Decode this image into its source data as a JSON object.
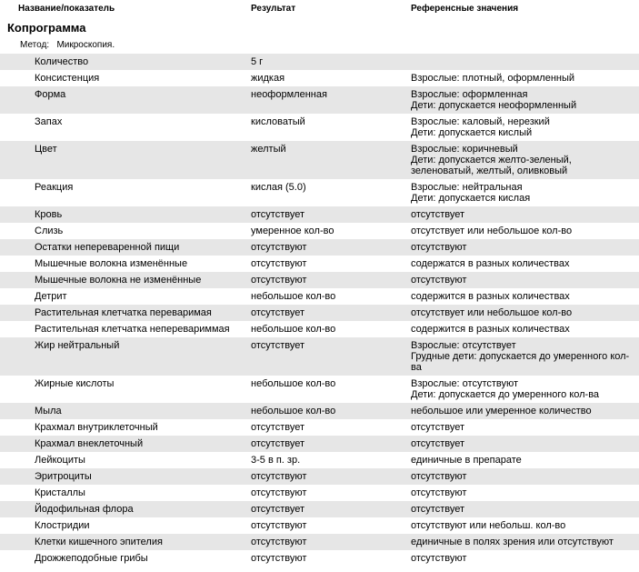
{
  "headers": {
    "name": "Название/показатель",
    "result": "Результат",
    "reference": "Референсные значения"
  },
  "title": "Копрограмма",
  "method_label": "Метод:",
  "method_value": "Микроскопия.",
  "rows": [
    {
      "name": "Количество",
      "result": "5 г",
      "reference": [],
      "alt": true
    },
    {
      "name": "Консистенция",
      "result": "жидкая",
      "reference": [
        "Взрослые: плотный, оформленный"
      ],
      "alt": false
    },
    {
      "name": "Форма",
      "result": "неоформленная",
      "reference": [
        "Взрослые: оформленная",
        " Дети: допускается неоформленный"
      ],
      "alt": true
    },
    {
      "name": "Запах",
      "result": "кисловатый",
      "reference": [
        "Взрослые: каловый, нерезкий",
        "Дети: допускается кислый"
      ],
      "alt": false
    },
    {
      "name": "Цвет",
      "result": "желтый",
      "reference": [
        "Взрослые: коричневый",
        "Дети: допускается желто-зеленый, зеленоватый, желтый, оливковый"
      ],
      "alt": true
    },
    {
      "name": "Реакция",
      "result": "кислая (5.0)",
      "reference": [
        "Взрослые: нейтральная",
        "Дети: допускается кислая"
      ],
      "alt": false
    },
    {
      "name": "Кровь",
      "result": "отсутствует",
      "reference": [
        "отсутствует"
      ],
      "alt": true
    },
    {
      "name": "Слизь",
      "result": "умеренное кол-во",
      "reference": [
        "отсутствует или небольшое кол-во"
      ],
      "alt": false
    },
    {
      "name": "Остатки непереваренной пищи",
      "result": "отсутствуют",
      "reference": [
        "отсутствуют"
      ],
      "alt": true
    },
    {
      "name": "Мышечные волокна изменённые",
      "result": "отсутствуют",
      "reference": [
        "содержатся в разных количествах"
      ],
      "alt": false
    },
    {
      "name": "Мышечные волокна не изменённые",
      "result": "отсутствуют",
      "reference": [
        "отсутствуют"
      ],
      "alt": true
    },
    {
      "name": "Детрит",
      "result": "небольшое кол-во",
      "reference": [
        "содержится в разных количествах"
      ],
      "alt": false
    },
    {
      "name": "Растительная клетчатка переваримая",
      "result": "отсутствует",
      "reference": [
        "отсутствует или небольшое кол-во"
      ],
      "alt": true
    },
    {
      "name": "Растительная клетчатка неперевариммая",
      "result": "небольшое кол-во",
      "reference": [
        "содержится в разных количествах"
      ],
      "alt": false
    },
    {
      "name": "Жир нейтральный",
      "result": "отсутствует",
      "reference": [
        "Взрослые: отсутствует",
        "Грудные дети: допускается до умеренного кол-ва"
      ],
      "alt": true
    },
    {
      "name": "Жирные кислоты",
      "result": "небольшое кол-во",
      "reference": [
        "Взрослые: отсутствуют",
        " Дети: допускается до умеренного кол-ва"
      ],
      "alt": false
    },
    {
      "name": "Мыла",
      "result": "небольшое кол-во",
      "reference": [
        "небольшое или умеренное количество"
      ],
      "alt": true
    },
    {
      "name": "Крахмал внутриклеточный",
      "result": "отсутствует",
      "reference": [
        "отсутствует"
      ],
      "alt": false
    },
    {
      "name": "Крахмал внеклеточный",
      "result": "отсутствует",
      "reference": [
        "отсутствует"
      ],
      "alt": true
    },
    {
      "name": "Лейкоциты",
      "result": "3-5 в п. зр.",
      "reference": [
        "единичные в препарате"
      ],
      "alt": false
    },
    {
      "name": "Эритроциты",
      "result": "отсутствуют",
      "reference": [
        "отсутствуют"
      ],
      "alt": true
    },
    {
      "name": "Кристаллы",
      "result": "отсутствуют",
      "reference": [
        "отсутствуют"
      ],
      "alt": false
    },
    {
      "name": "Йодофильная флора",
      "result": "отсутствует",
      "reference": [
        "отсутствует"
      ],
      "alt": true
    },
    {
      "name": "Клостридии",
      "result": "отсутствуют",
      "reference": [
        "отсутствуют или небольш. кол-во"
      ],
      "alt": false
    },
    {
      "name": "Клетки кишечного эпителия",
      "result": "отсутствуют",
      "reference": [
        "единичные в полях зрения или отсутствуют"
      ],
      "alt": true
    },
    {
      "name": "Дрожжеподобные грибы",
      "result": "отсутствуют",
      "reference": [
        "отсутствуют"
      ],
      "alt": false
    }
  ]
}
